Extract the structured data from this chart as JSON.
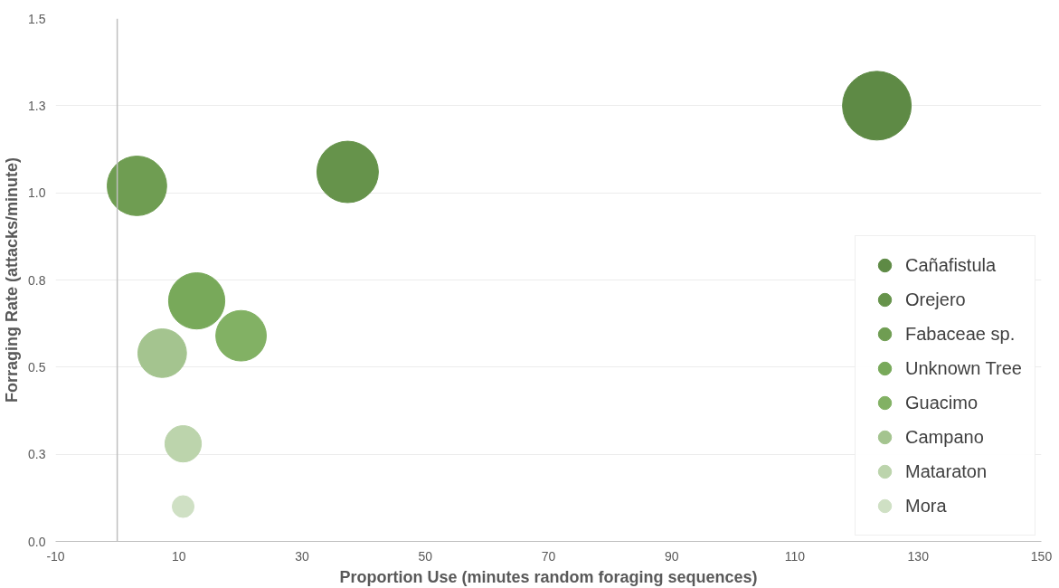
{
  "chart_data": {
    "type": "bubble",
    "xlabel": "Proportion Use (minutes random foraging sequences)",
    "ylabel": "Forraging Rate (attacks/minute)",
    "xlim": [
      -10,
      150
    ],
    "xticks": [
      -10,
      10,
      30,
      50,
      70,
      90,
      110,
      130,
      150
    ],
    "ylim": [
      0,
      1.5
    ],
    "yticks": [
      {
        "value": 0,
        "label": "0.0"
      },
      {
        "value": 0.25,
        "label": "0.3"
      },
      {
        "value": 0.5,
        "label": "0.5"
      },
      {
        "value": 0.75,
        "label": "0.8"
      },
      {
        "value": 1.0,
        "label": "1.0"
      },
      {
        "value": 1.25,
        "label": "1.3"
      },
      {
        "value": 1.5,
        "label": "1.5"
      }
    ],
    "grid": "y",
    "legend": "bottom right",
    "ref_lines": [
      {
        "axis": "x",
        "value": 0,
        "label": null,
        "color": "#bfbfbf"
      }
    ],
    "series": [
      {
        "name": "Cañafistula",
        "color": "#5e8a45",
        "x": [
          123.3
        ],
        "values": [
          1.25
        ],
        "sizes": [
          1
        ]
      },
      {
        "name": "Orejero",
        "color": "#66934b",
        "x": [
          37.4
        ],
        "values": [
          1.06
        ],
        "sizes": [
          0.8
        ]
      },
      {
        "name": "Fabaceae sp.",
        "color": "#6f9d52",
        "x": [
          3.2
        ],
        "values": [
          1.02
        ],
        "sizes": [
          0.75
        ]
      },
      {
        "name": "Unknown Tree",
        "color": "#78a95a",
        "x": [
          12.9
        ],
        "values": [
          0.69
        ],
        "sizes": [
          0.67
        ]
      },
      {
        "name": "Guacimo",
        "color": "#82b164",
        "x": [
          20.1
        ],
        "values": [
          0.59
        ],
        "sizes": [
          0.54
        ]
      },
      {
        "name": "Campano",
        "color": "#a4c48f",
        "x": [
          7.3
        ],
        "values": [
          0.54
        ],
        "sizes": [
          0.5
        ]
      },
      {
        "name": "Mataraton",
        "color": "#bcd4ac",
        "x": [
          10.7
        ],
        "values": [
          0.28
        ],
        "sizes": [
          0.28
        ]
      },
      {
        "name": "Mora",
        "color": "#cfe0c4",
        "x": [
          10.7
        ],
        "values": [
          0.1
        ],
        "sizes": [
          0.1
        ]
      }
    ]
  }
}
